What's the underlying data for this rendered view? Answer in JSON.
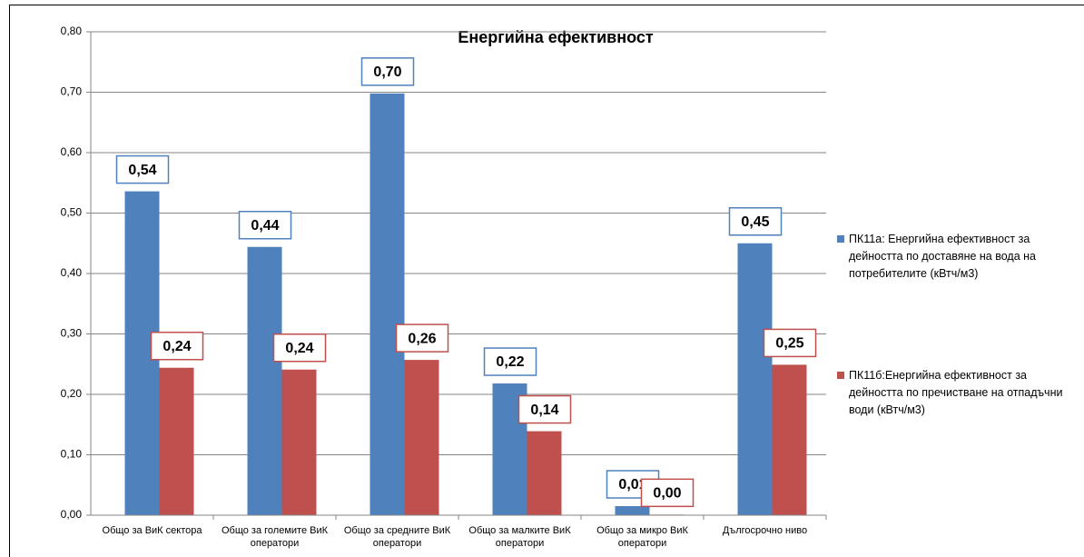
{
  "chart_data": {
    "type": "bar",
    "title": "Енергийна ефективност",
    "categories": [
      "Общо за ВиК сектора",
      "Общо за големите ВиК оператори",
      "Общо за средните ВиК оператори",
      "Общо за малките ВиК оператори",
      "Общо за микро ВиК оператори",
      "Дългосрочно ниво"
    ],
    "series": [
      {
        "name": "ПК11а: Енергийна ефективност за дейността по доставяне на вода на потребителите (кВтч/м3)",
        "color": "#4f81bd",
        "values": [
          0.536,
          0.444,
          0.698,
          0.218,
          0.015,
          0.45
        ],
        "value_labels": [
          "0,54",
          "0,44",
          "0,70",
          "0,22",
          "0,01",
          "0,45"
        ]
      },
      {
        "name": "ПК11б:Енергийна ефективност за дейността по пречистване на отпадъчни води (кВтч/м3)",
        "color": "#c0504d",
        "values": [
          0.244,
          0.241,
          0.257,
          0.139,
          0.001,
          0.249
        ],
        "value_labels": [
          "0,24",
          "0,24",
          "0,26",
          "0,14",
          "0,00",
          "0,25"
        ]
      }
    ],
    "ylim": [
      0,
      0.8
    ],
    "yticks": [
      {
        "value": 0,
        "label": "0,00"
      },
      {
        "value": 0.1,
        "label": "0,10"
      },
      {
        "value": 0.2,
        "label": "0,20"
      },
      {
        "value": 0.3,
        "label": "0,30"
      },
      {
        "value": 0.4,
        "label": "0,40"
      },
      {
        "value": 0.5,
        "label": "0,50"
      },
      {
        "value": 0.6,
        "label": "0,60"
      },
      {
        "value": 0.7,
        "label": "0,70"
      },
      {
        "value": 0.8,
        "label": "0,80"
      }
    ],
    "grid": true,
    "legend": "right"
  }
}
